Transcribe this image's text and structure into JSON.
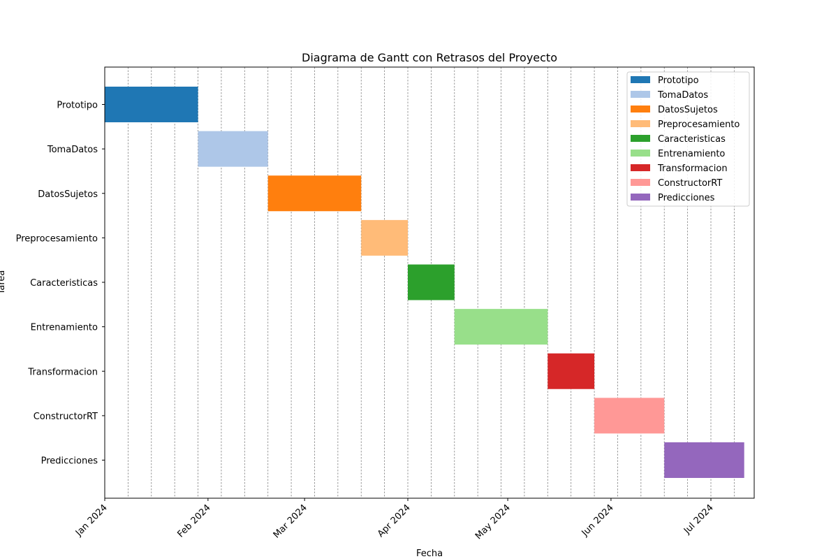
{
  "chart_data": {
    "type": "gantt",
    "title": "Diagrama de Gantt con Retrasos del Proyecto",
    "xlabel": "Fecha",
    "ylabel": "Tarea",
    "xlim": [
      "2024-01-01",
      "2024-07-14"
    ],
    "grid": "vertical dashed, weekly",
    "legend": "top-right",
    "x_ticks": [
      {
        "date": "2024-01-01",
        "label": "Jan 2024"
      },
      {
        "date": "2024-02-01",
        "label": "Feb 2024"
      },
      {
        "date": "2024-03-01",
        "label": "Mar 2024"
      },
      {
        "date": "2024-04-01",
        "label": "Apr 2024"
      },
      {
        "date": "2024-05-01",
        "label": "May 2024"
      },
      {
        "date": "2024-06-01",
        "label": "Jun 2024"
      },
      {
        "date": "2024-07-01",
        "label": "Jul 2024"
      }
    ],
    "tasks": [
      {
        "name": "Prototipo",
        "start": "2024-01-01",
        "end": "2024-01-29",
        "color": "#1f77b4"
      },
      {
        "name": "TomaDatos",
        "start": "2024-01-29",
        "end": "2024-02-19",
        "color": "#aec7e8"
      },
      {
        "name": "DatosSujetos",
        "start": "2024-02-19",
        "end": "2024-03-18",
        "color": "#ff7f0e"
      },
      {
        "name": "Preprocesamiento",
        "start": "2024-03-18",
        "end": "2024-04-01",
        "color": "#ffbb78"
      },
      {
        "name": "Caracteristicas",
        "start": "2024-04-01",
        "end": "2024-04-15",
        "color": "#2ca02c"
      },
      {
        "name": "Entrenamiento",
        "start": "2024-04-15",
        "end": "2024-05-13",
        "color": "#98df8a"
      },
      {
        "name": "Transformacion",
        "start": "2024-05-13",
        "end": "2024-05-27",
        "color": "#d62728"
      },
      {
        "name": "ConstructorRT",
        "start": "2024-05-27",
        "end": "2024-06-17",
        "color": "#ff9896"
      },
      {
        "name": "Predicciones",
        "start": "2024-06-17",
        "end": "2024-07-11",
        "color": "#9467bd"
      }
    ]
  }
}
